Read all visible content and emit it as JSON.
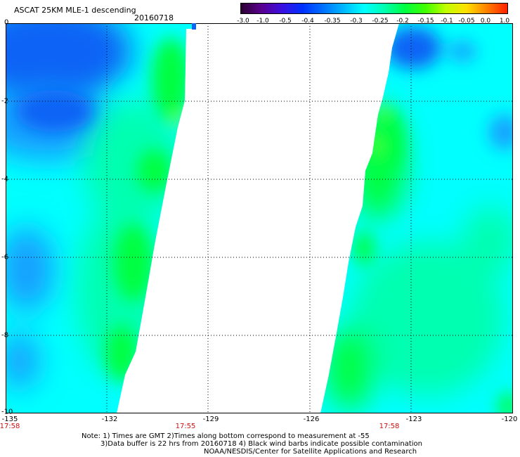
{
  "header": {
    "title": "ASCAT 25KM MLE-1 descending",
    "date": "20160718"
  },
  "colorbar": {
    "labels": [
      "-3.0",
      "-1.0",
      "-0.5",
      "-0.4",
      "-0.35",
      "-0.3",
      "-0.25",
      "-0.2",
      "-0.15",
      "-0.1",
      "-0.05",
      "0.0",
      "1.0"
    ],
    "colors": [
      "#2a0030",
      "#5a0090",
      "#3a10e0",
      "#0030ff",
      "#0070ff",
      "#00b8ff",
      "#00ffff",
      "#00ffb0",
      "#00ff40",
      "#40ff00",
      "#c0ff00",
      "#ffe000",
      "#ff8000",
      "#ff2000"
    ]
  },
  "map": {
    "y_labels": [
      "0",
      "-2",
      "-4",
      "-6",
      "-8",
      "-10"
    ],
    "x_labels": [
      "-135",
      "-132",
      "-129",
      "-126",
      "-123",
      "-120"
    ],
    "time_labels": [
      "17:58",
      "17:55",
      "17:58"
    ],
    "colors": {
      "blue": "#0a64f5",
      "light_blue": "#14a0ff",
      "cyan": "#00ffff",
      "aqua_green": "#00ffb0",
      "green": "#00ff40",
      "yellow_green": "#b0ff00"
    }
  },
  "notes": {
    "line1": "Note: 1) Times are GMT 2)Times along bottom correspond to measurement at -55",
    "line2": "3)Data buffer is 22 hrs from 20160718 4) Black wind barbs indicate possible contamination",
    "line3": "NOAA/NESDIS/Center for Satellite Applications and Research"
  }
}
